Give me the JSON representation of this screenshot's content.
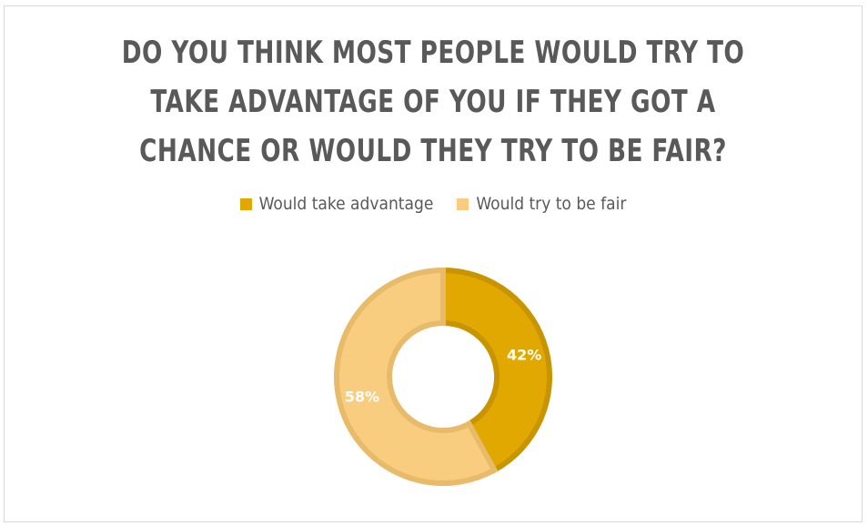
{
  "chart_data": {
    "type": "pie",
    "variant": "donut",
    "title_lines": [
      "DO YOU THINK MOST PEOPLE WOULD TRY TO",
      "TAKE ADVANTAGE OF YOU IF THEY GOT A",
      "CHANCE OR WOULD THEY TRY TO BE FAIR?"
    ],
    "legend_position": "top",
    "categories": [
      "Would take advantage",
      "Would try to be fair"
    ],
    "values": [
      42,
      58
    ],
    "data_labels": [
      "42%",
      "58%"
    ],
    "colors": [
      "#e0a800",
      "#f8cd7f"
    ],
    "edge_colors": [
      "#c89400",
      "#e8bb6a"
    ]
  }
}
